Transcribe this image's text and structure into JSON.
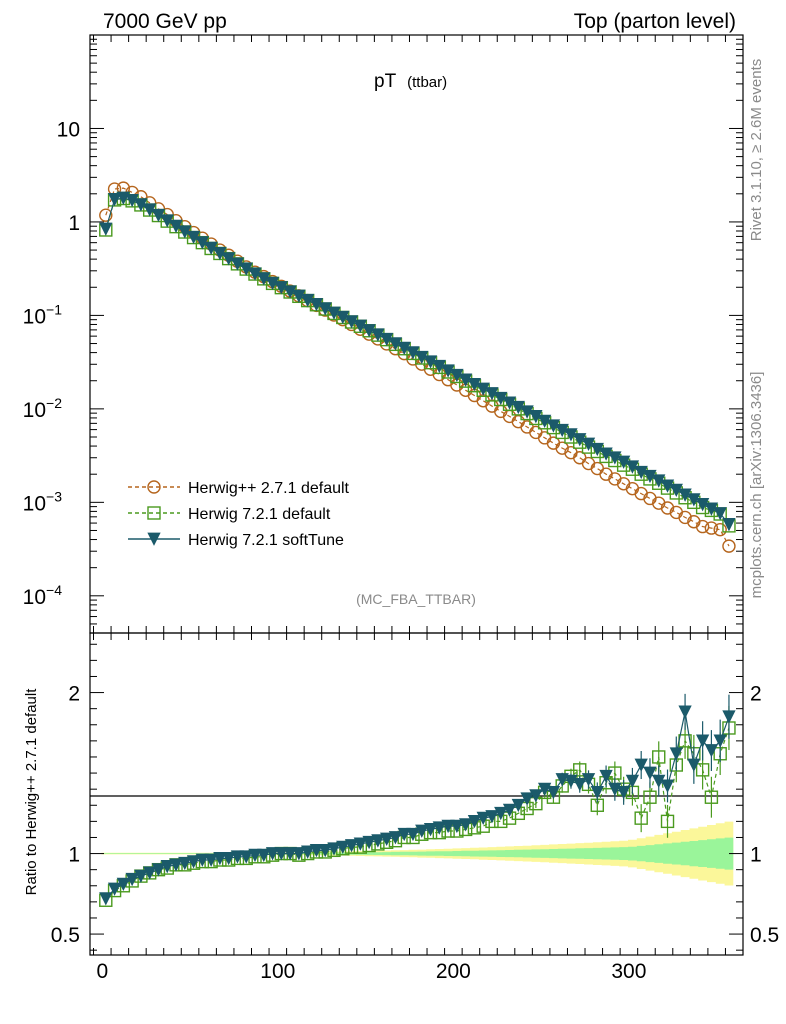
{
  "header": {
    "left": "7000 GeV pp",
    "right": "Top (parton level)"
  },
  "side_labels": {
    "rivet": "Rivet 3.1.10, ≥ 2.6M events",
    "mcplots": "mcplots.cern.ch [arXiv:1306.3436]"
  },
  "chart_data": [
    {
      "type": "line",
      "title": "pT",
      "title_suffix": "(ttbar)",
      "watermark": "(MC_FBA_TTBAR)",
      "yscale": "log",
      "ylim": [
        4e-05,
        100
      ],
      "xlim": [
        -7,
        365
      ],
      "yticks": [
        {
          "v": 10,
          "label": "10",
          "exp": ""
        },
        {
          "v": 1,
          "label": "1",
          "exp": ""
        },
        {
          "v": 0.1,
          "label": "10",
          "exp": "−1"
        },
        {
          "v": 0.01,
          "label": "10",
          "exp": "−2"
        },
        {
          "v": 0.001,
          "label": "10",
          "exp": "−3"
        },
        {
          "v": 0.0001,
          "label": "10",
          "exp": "−4"
        }
      ],
      "legend_position": "bottom-left",
      "colors": {
        "herwigpp": "#b5651d",
        "h721": "#4a9a1e",
        "soft": "#1b5a6a"
      },
      "x": [
        2,
        7,
        12,
        17,
        22,
        27,
        32,
        37,
        42,
        47,
        52,
        57,
        62,
        67,
        72,
        77,
        82,
        87,
        92,
        97,
        102,
        107,
        112,
        117,
        122,
        127,
        132,
        137,
        142,
        147,
        152,
        157,
        162,
        167,
        172,
        177,
        182,
        187,
        192,
        197,
        202,
        207,
        212,
        217,
        222,
        227,
        232,
        237,
        242,
        247,
        252,
        257,
        262,
        267,
        272,
        277,
        282,
        287,
        292,
        297,
        302,
        307,
        312,
        317,
        322,
        327,
        332,
        337,
        342,
        347,
        352,
        357
      ],
      "series": [
        {
          "name": "Herwig++ 2.7.1 default",
          "marker": "circle-open",
          "style": "dashed",
          "color_key": "herwigpp",
          "values": [
            1.18,
            2.25,
            2.3,
            2.07,
            1.86,
            1.6,
            1.38,
            1.2,
            1.03,
            0.89,
            0.77,
            0.67,
            0.58,
            0.5,
            0.44,
            0.38,
            0.33,
            0.29,
            0.26,
            0.23,
            0.205,
            0.182,
            0.162,
            0.144,
            0.128,
            0.114,
            0.101,
            0.09,
            0.08,
            0.071,
            0.063,
            0.056,
            0.0495,
            0.044,
            0.039,
            0.0342,
            0.0301,
            0.0265,
            0.0233,
            0.0205,
            0.018,
            0.0158,
            0.0139,
            0.0122,
            0.0107,
            0.0094,
            0.0083,
            0.0073,
            0.0064,
            0.0056,
            0.0049,
            0.0043,
            0.0038,
            0.0034,
            0.003,
            0.0026,
            0.0023,
            0.002,
            0.00178,
            0.00158,
            0.0014,
            0.00124,
            0.0011,
            0.00098,
            0.00087,
            0.00078,
            0.00069,
            0.00062,
            0.00055,
            0.00053,
            0.00051,
            0.00034
          ]
        },
        {
          "name": "Herwig 7.2.1 default",
          "marker": "square-open",
          "style": "dashed",
          "color_key": "h721",
          "values": [
            0.82,
            1.72,
            1.78,
            1.68,
            1.52,
            1.34,
            1.17,
            1.02,
            0.89,
            0.78,
            0.68,
            0.6,
            0.52,
            0.46,
            0.405,
            0.356,
            0.313,
            0.277,
            0.246,
            0.22,
            0.198,
            0.178,
            0.16,
            0.144,
            0.13,
            0.117,
            0.105,
            0.095,
            0.085,
            0.0765,
            0.0685,
            0.0615,
            0.055,
            0.049,
            0.044,
            0.0392,
            0.035,
            0.0312,
            0.0278,
            0.0248,
            0.0222,
            0.0198,
            0.0177,
            0.0158,
            0.0141,
            0.0126,
            0.0112,
            0.01,
            0.0089,
            0.0079,
            0.0071,
            0.0063,
            0.0056,
            0.005,
            0.0044,
            0.0039,
            0.0035,
            0.0031,
            0.0028,
            0.0025,
            0.00226,
            0.002,
            0.00178,
            0.0016,
            0.00142,
            0.00126,
            0.00112,
            0.001,
            0.00088,
            0.00082,
            0.00075,
            0.00056
          ]
        },
        {
          "name": "Herwig 7.2.1 softTune",
          "marker": "triangle-down-filled",
          "style": "solid",
          "color_key": "soft",
          "values": [
            0.84,
            1.74,
            1.8,
            1.7,
            1.53,
            1.35,
            1.18,
            1.03,
            0.9,
            0.785,
            0.685,
            0.6,
            0.525,
            0.46,
            0.405,
            0.356,
            0.314,
            0.278,
            0.247,
            0.221,
            0.199,
            0.179,
            0.161,
            0.145,
            0.131,
            0.118,
            0.106,
            0.0955,
            0.0857,
            0.077,
            0.069,
            0.062,
            0.0556,
            0.0498,
            0.0446,
            0.04,
            0.0357,
            0.0319,
            0.0286,
            0.0256,
            0.0229,
            0.0204,
            0.0183,
            0.0163,
            0.0146,
            0.013,
            0.0116,
            0.0104,
            0.0093,
            0.0083,
            0.0074,
            0.0066,
            0.0059,
            0.0053,
            0.0047,
            0.0042,
            0.0037,
            0.0033,
            0.003,
            0.0027,
            0.0024,
            0.0021,
            0.0019,
            0.0017,
            0.0015,
            0.00135,
            0.0012,
            0.00107,
            0.00095,
            0.00085,
            0.00076,
            0.00058
          ]
        }
      ]
    },
    {
      "type": "line",
      "ylabel": "Ratio to Herwig++ 2.7.1 default",
      "ylim": [
        0.37,
        2.37
      ],
      "xlim": [
        -7,
        365
      ],
      "xticks": [
        "0",
        "100",
        "200",
        "300"
      ],
      "xtick_values": [
        0,
        100,
        200,
        300
      ],
      "yticks": [
        "0.5",
        "1",
        "2"
      ],
      "ytick_values": [
        0.5,
        1,
        2
      ],
      "series": [
        {
          "name": "Herwig 7.2.1 default",
          "color_key": "h721",
          "values": [
            0.71,
            0.77,
            0.8,
            0.83,
            0.86,
            0.88,
            0.9,
            0.91,
            0.93,
            0.93,
            0.94,
            0.95,
            0.95,
            0.96,
            0.96,
            0.97,
            0.97,
            0.98,
            0.98,
            0.99,
            1.0,
            1.0,
            0.99,
            1.0,
            1.01,
            1.01,
            1.02,
            1.03,
            1.04,
            1.04,
            1.05,
            1.06,
            1.07,
            1.08,
            1.1,
            1.1,
            1.12,
            1.13,
            1.13,
            1.14,
            1.14,
            1.15,
            1.16,
            1.17,
            1.2,
            1.2,
            1.22,
            1.25,
            1.28,
            1.31,
            1.38,
            1.35,
            1.42,
            1.48,
            1.52,
            1.43,
            1.3,
            1.44,
            1.5,
            1.4,
            1.38,
            1.22,
            1.35,
            1.6,
            1.2,
            1.55,
            1.7,
            1.62,
            1.52,
            1.35,
            1.62,
            1.78
          ]
        },
        {
          "name": "Herwig 7.2.1 softTune",
          "color_key": "soft",
          "values": [
            0.72,
            0.78,
            0.81,
            0.84,
            0.86,
            0.88,
            0.9,
            0.92,
            0.93,
            0.94,
            0.95,
            0.96,
            0.96,
            0.97,
            0.97,
            0.98,
            0.98,
            0.99,
            0.99,
            1.0,
            1.0,
            1.0,
            1.0,
            1.01,
            1.02,
            1.02,
            1.03,
            1.04,
            1.05,
            1.06,
            1.07,
            1.08,
            1.09,
            1.1,
            1.12,
            1.12,
            1.14,
            1.15,
            1.16,
            1.17,
            1.17,
            1.18,
            1.2,
            1.22,
            1.23,
            1.25,
            1.27,
            1.3,
            1.34,
            1.36,
            1.4,
            1.38,
            1.46,
            1.45,
            1.43,
            1.46,
            1.38,
            1.48,
            1.4,
            1.38,
            1.45,
            1.55,
            1.5,
            1.45,
            1.42,
            1.62,
            1.88,
            1.55,
            1.7,
            1.64,
            1.7,
            1.85
          ]
        }
      ]
    }
  ]
}
